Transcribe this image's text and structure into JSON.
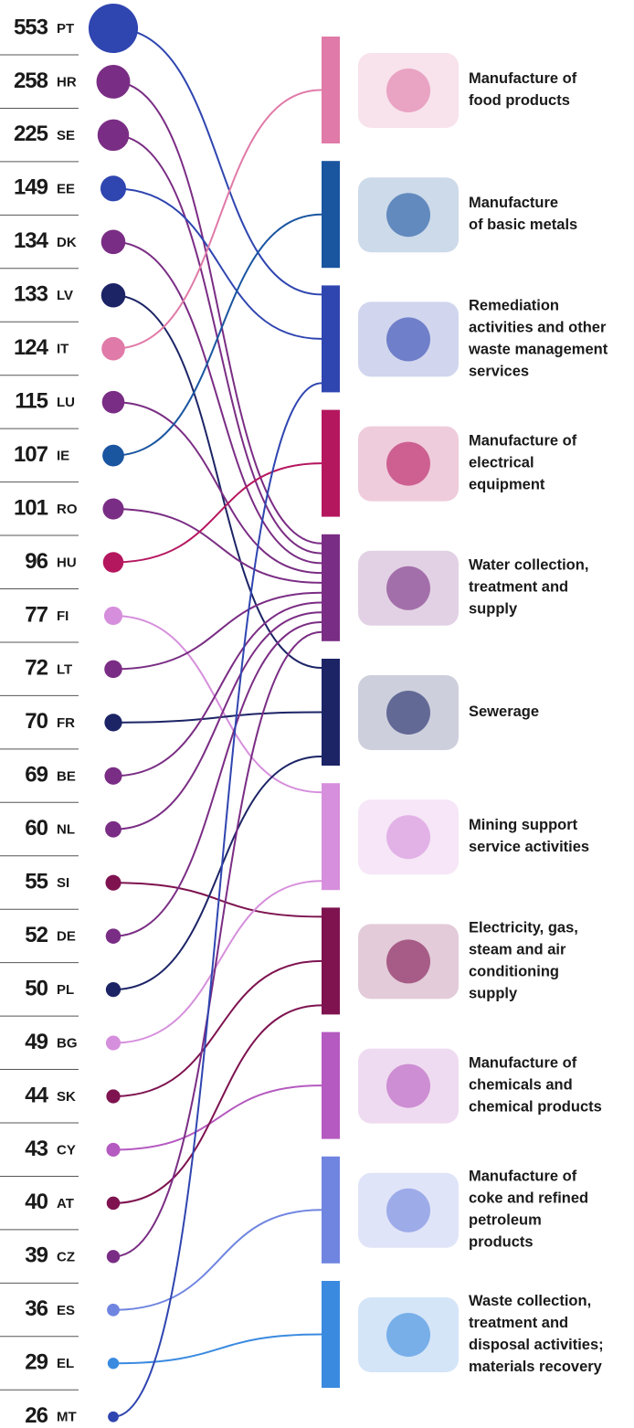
{
  "chart_data": {
    "type": "bubble-link",
    "sectors": [
      {
        "label": [
          "Manufacture of",
          "food products"
        ],
        "color": "#e07aa8"
      },
      {
        "label": [
          "Manufacture",
          "of basic metals"
        ],
        "color": "#1a55a0"
      },
      {
        "label": [
          "Remediation",
          "activities and other",
          "waste management",
          "services"
        ],
        "color": "#2f45b0"
      },
      {
        "label": [
          "Manufacture of",
          "electrical",
          "equipment"
        ],
        "color": "#b5175f"
      },
      {
        "label": [
          "Water collection,",
          "treatment and",
          "supply"
        ],
        "color": "#7a2d84"
      },
      {
        "label": [
          "Sewerage"
        ],
        "color": "#1c2466"
      },
      {
        "label": [
          "Mining support",
          "service activities"
        ],
        "color": "#d68fdc"
      },
      {
        "label": [
          "Electricity, gas,",
          "steam and air",
          "conditioning",
          "supply"
        ],
        "color": "#7e1350"
      },
      {
        "label": [
          "Manufacture of",
          "chemicals and",
          "chemical products"
        ],
        "color": "#b55ac0"
      },
      {
        "label": [
          "Manufacture of",
          "coke and refined",
          "petroleum",
          "products"
        ],
        "color": "#7085e0"
      },
      {
        "label": [
          "Waste collection,",
          "treatment and",
          "disposal activities;",
          "materials recovery"
        ],
        "color": "#3a8ae0"
      }
    ],
    "countries": [
      {
        "code": "PT",
        "value": 553,
        "sector": 2
      },
      {
        "code": "HR",
        "value": 258,
        "sector": 4
      },
      {
        "code": "SE",
        "value": 225,
        "sector": 4
      },
      {
        "code": "EE",
        "value": 149,
        "sector": 2
      },
      {
        "code": "DK",
        "value": 134,
        "sector": 4
      },
      {
        "code": "LV",
        "value": 133,
        "sector": 5
      },
      {
        "code": "IT",
        "value": 124,
        "sector": 0
      },
      {
        "code": "LU",
        "value": 115,
        "sector": 4
      },
      {
        "code": "IE",
        "value": 107,
        "sector": 1
      },
      {
        "code": "RO",
        "value": 101,
        "sector": 4
      },
      {
        "code": "HU",
        "value": 96,
        "sector": 3
      },
      {
        "code": "FI",
        "value": 77,
        "sector": 6
      },
      {
        "code": "LT",
        "value": 72,
        "sector": 4
      },
      {
        "code": "FR",
        "value": 70,
        "sector": 5
      },
      {
        "code": "BE",
        "value": 69,
        "sector": 4
      },
      {
        "code": "NL",
        "value": 60,
        "sector": 4
      },
      {
        "code": "SI",
        "value": 55,
        "sector": 7
      },
      {
        "code": "DE",
        "value": 52,
        "sector": 4
      },
      {
        "code": "PL",
        "value": 50,
        "sector": 5
      },
      {
        "code": "BG",
        "value": 49,
        "sector": 6
      },
      {
        "code": "SK",
        "value": 44,
        "sector": 7
      },
      {
        "code": "CY",
        "value": 43,
        "sector": 8
      },
      {
        "code": "AT",
        "value": 40,
        "sector": 7
      },
      {
        "code": "CZ",
        "value": 39,
        "sector": 4
      },
      {
        "code": "ES",
        "value": 36,
        "sector": 9
      },
      {
        "code": "EL",
        "value": 29,
        "sector": 10
      },
      {
        "code": "MT",
        "value": 26,
        "sector": 2
      }
    ]
  }
}
